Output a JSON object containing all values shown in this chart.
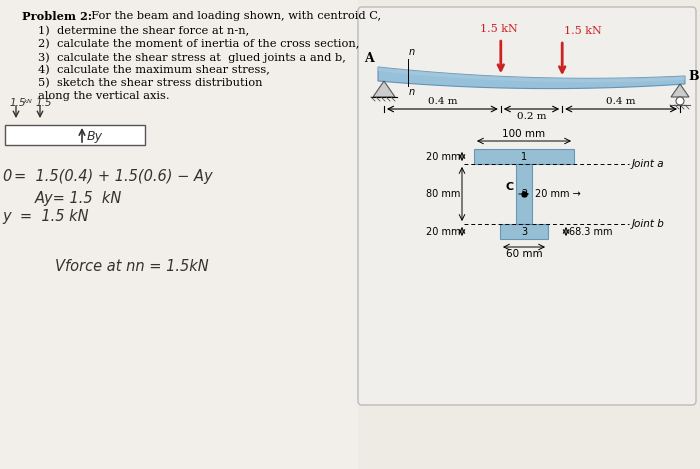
{
  "bg_color": "#eeebe5",
  "title_bold": "Problem 2:",
  "title_rest": "  For the beam and loading shown, with centroid C,",
  "items": [
    "1)  determine the shear force at n-n,",
    "2)  calculate the moment of inertia of the cross section,",
    "3)  calculate the shear stress at  glued joints a and b,",
    "4)  calculate the maximum shear stress,",
    "5)  sketch the shear stress distribution"
  ],
  "along_text": "along the vertical axis.",
  "force_color": "#cc2222",
  "beam_color_top": "#aacce0",
  "beam_color_mid": "#88b8d8",
  "section_color": "#7ab0cc",
  "force1_label": "1.5 kN",
  "force2_label": "1.5 kN",
  "dim1": "0.4 m",
  "dim2": "0.2 m",
  "dim3": "0.4 m",
  "cs_w_top": "100 mm",
  "cs_h_top": "20 mm",
  "cs_h_web": "80 mm",
  "cs_w_web": "20 mm",
  "cs_h_bot": "20 mm",
  "cs_w_bot": "60 mm",
  "cs_centroid": "68.3 mm",
  "jointa": "Joint a",
  "jointb": "Joint b",
  "c_label": "C",
  "A_label": "A",
  "B_label": "B"
}
